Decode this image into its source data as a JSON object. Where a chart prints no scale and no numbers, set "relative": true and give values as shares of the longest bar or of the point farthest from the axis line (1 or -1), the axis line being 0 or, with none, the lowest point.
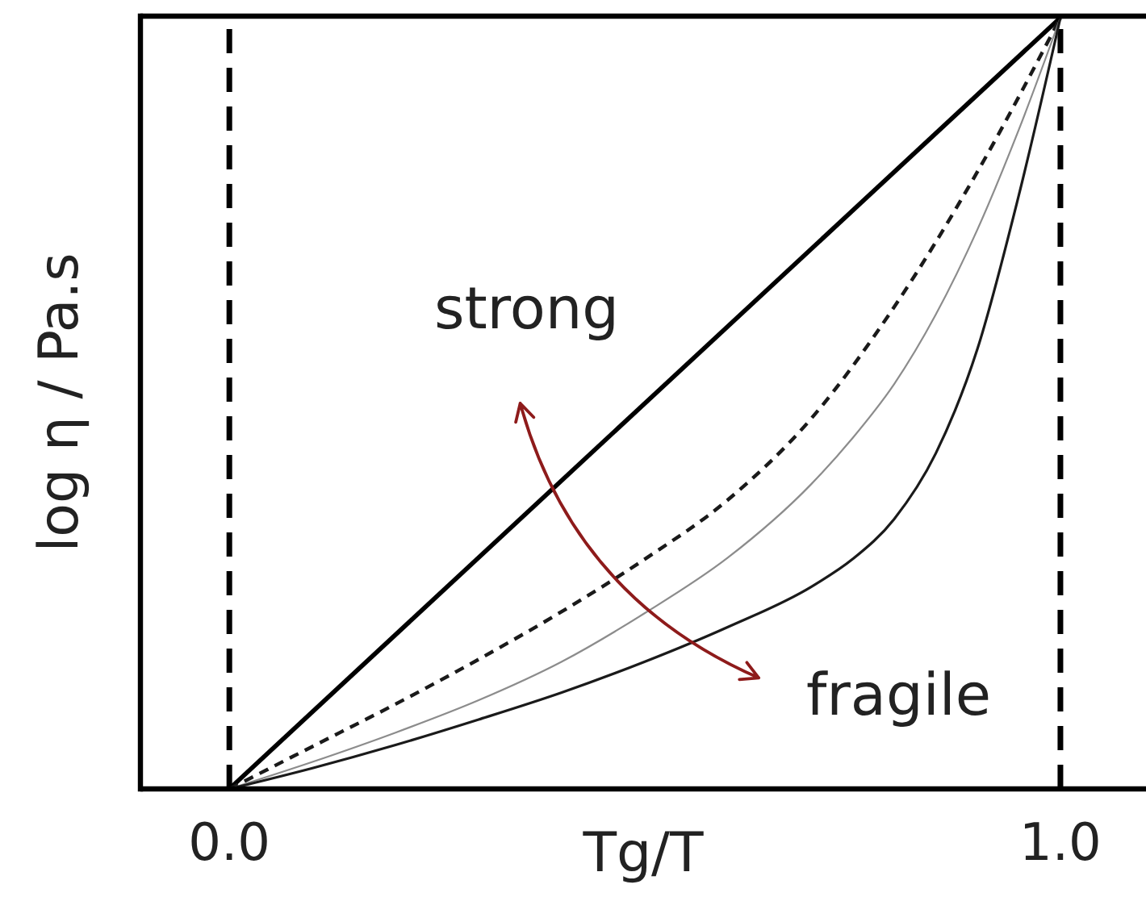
{
  "chart_data": {
    "type": "line",
    "xlabel": "Tg/T",
    "ylabel": "log η / Pa.s",
    "relative": true,
    "xlim": [
      -0.107,
      1.103
    ],
    "xticks": [
      {
        "value": 0,
        "label": "0.0"
      },
      {
        "value": 1,
        "label": "1.0"
      }
    ],
    "tick_labels": "x",
    "series": [
      {
        "color": "#000000",
        "line_style": "solid",
        "x": [
          0,
          1
        ],
        "values": [
          0,
          1
        ]
      },
      {
        "color": "#1a1a1a",
        "line_style": "dashed",
        "x": [
          0,
          0.1,
          0.2,
          0.3,
          0.4,
          0.5,
          0.6,
          0.7,
          0.8,
          0.9,
          1
        ],
        "values": [
          0,
          0.055,
          0.11,
          0.168,
          0.23,
          0.298,
          0.375,
          0.48,
          0.625,
          0.8,
          1
        ]
      },
      {
        "color": "#8c8c8c",
        "line_style": "solid",
        "x": [
          0,
          0.1,
          0.2,
          0.3,
          0.4,
          0.5,
          0.6,
          0.7,
          0.75,
          0.8,
          0.85,
          0.9,
          0.95,
          1
        ],
        "values": [
          0,
          0.035,
          0.073,
          0.115,
          0.165,
          0.228,
          0.3,
          0.395,
          0.455,
          0.525,
          0.615,
          0.725,
          0.855,
          1
        ]
      },
      {
        "color": "#1a1a1a",
        "line_style": "solid",
        "x": [
          0,
          0.1,
          0.2,
          0.3,
          0.4,
          0.5,
          0.6,
          0.7,
          0.75,
          0.8,
          0.85,
          0.9,
          0.95,
          1
        ],
        "values": [
          0,
          0.027,
          0.057,
          0.09,
          0.125,
          0.165,
          0.21,
          0.262,
          0.298,
          0.35,
          0.435,
          0.57,
          0.77,
          1
        ]
      }
    ],
    "ref_lines": [
      {
        "axis": "x",
        "value": 0,
        "color": "#000000",
        "line_style": "dashed"
      },
      {
        "axis": "x",
        "value": 1,
        "color": "#000000",
        "line_style": "dashed"
      }
    ],
    "annotations": [
      "strong",
      "fragile"
    ]
  }
}
